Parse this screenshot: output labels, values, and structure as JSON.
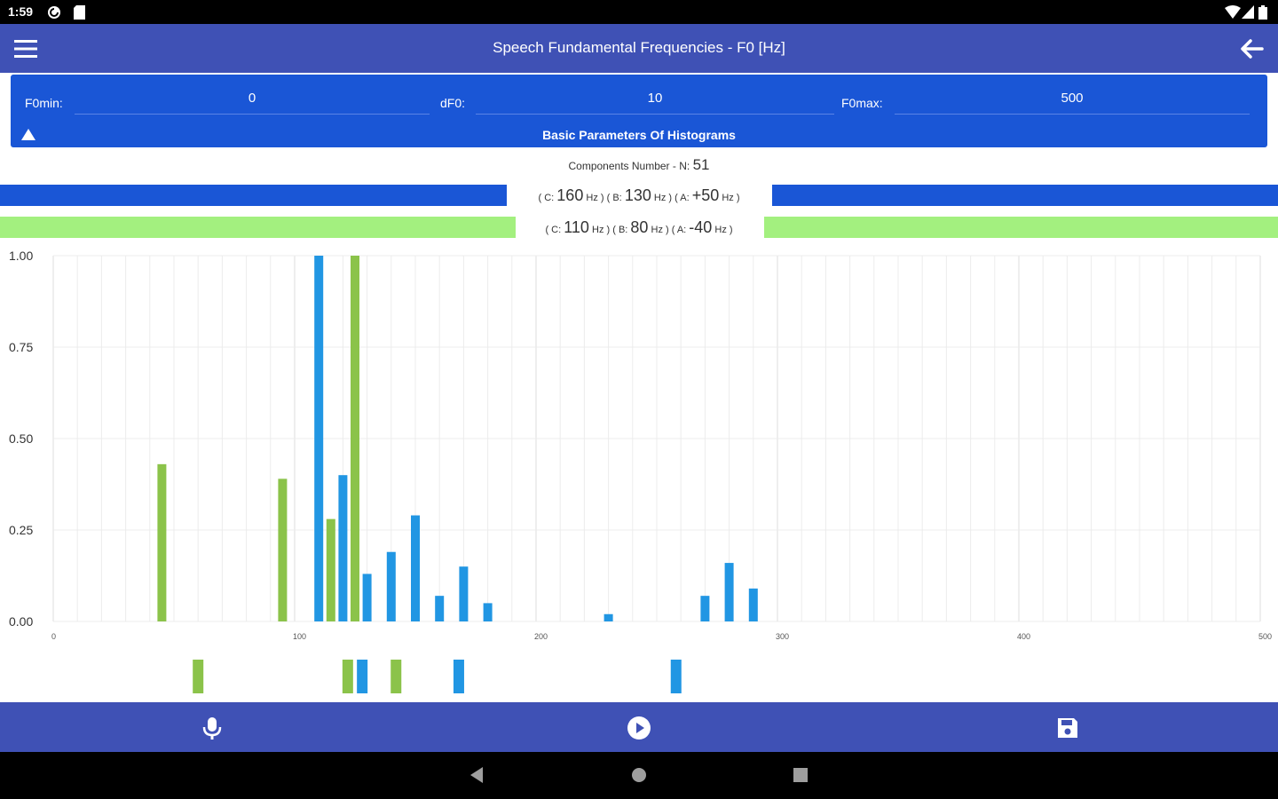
{
  "status": {
    "time": "1:59"
  },
  "app": {
    "title": "Speech Fundamental Frequencies - F0 [Hz]"
  },
  "params": {
    "f0min_label": "F0min:",
    "f0min_value": "0",
    "df0_label": "dF0:",
    "df0_value": "10",
    "f0max_label": "F0max:",
    "f0max_value": "500",
    "section_title": "Basic Parameters Of Histograms"
  },
  "components": {
    "label": "Components Number - N:",
    "value": "51"
  },
  "blue_row": {
    "c_prefix": "( C:",
    "c_value": "160",
    "c_unit": "Hz ) ( B:",
    "b_value": "130",
    "b_unit": "Hz ) ( A:",
    "a_value": "+50",
    "a_unit": "Hz )",
    "color": "#1a56d6"
  },
  "green_row": {
    "c_prefix": "( C:",
    "c_value": "110",
    "c_unit": "Hz ) ( B:",
    "b_value": "80",
    "b_unit": "Hz ) ( A:",
    "a_value": "-40",
    "a_unit": "Hz )",
    "color": "#a3f07f"
  },
  "chart_data": {
    "type": "bar",
    "xlim": [
      0,
      500
    ],
    "ylim": [
      0,
      1
    ],
    "x_ticks": [
      "0",
      "100",
      "200",
      "300",
      "400",
      "500"
    ],
    "y_ticks": [
      "0.00",
      "0.25",
      "0.50",
      "0.75",
      "1.00"
    ],
    "grid": true,
    "series": [
      {
        "color": "#2196e3",
        "points": [
          [
            110,
            1.0
          ],
          [
            120,
            0.4
          ],
          [
            130,
            0.13
          ],
          [
            140,
            0.19
          ],
          [
            150,
            0.29
          ],
          [
            160,
            0.07
          ],
          [
            170,
            0.15
          ],
          [
            180,
            0.05
          ],
          [
            230,
            0.02
          ],
          [
            270,
            0.07
          ],
          [
            280,
            0.16
          ],
          [
            290,
            0.09
          ]
        ]
      },
      {
        "color": "#8bc34a",
        "points": [
          [
            45,
            0.43
          ],
          [
            95,
            0.39
          ],
          [
            115,
            0.28
          ],
          [
            125,
            1.0
          ]
        ]
      }
    ]
  },
  "strip_data": {
    "xlim": [
      0,
      500
    ],
    "green": [
      60,
      122,
      142
    ],
    "blue": [
      128,
      168,
      258
    ]
  },
  "icons": {
    "menu": "menu-icon",
    "back": "arrow-left-icon",
    "mic": "microphone-icon",
    "play": "play-circle-icon",
    "save": "save-icon"
  }
}
